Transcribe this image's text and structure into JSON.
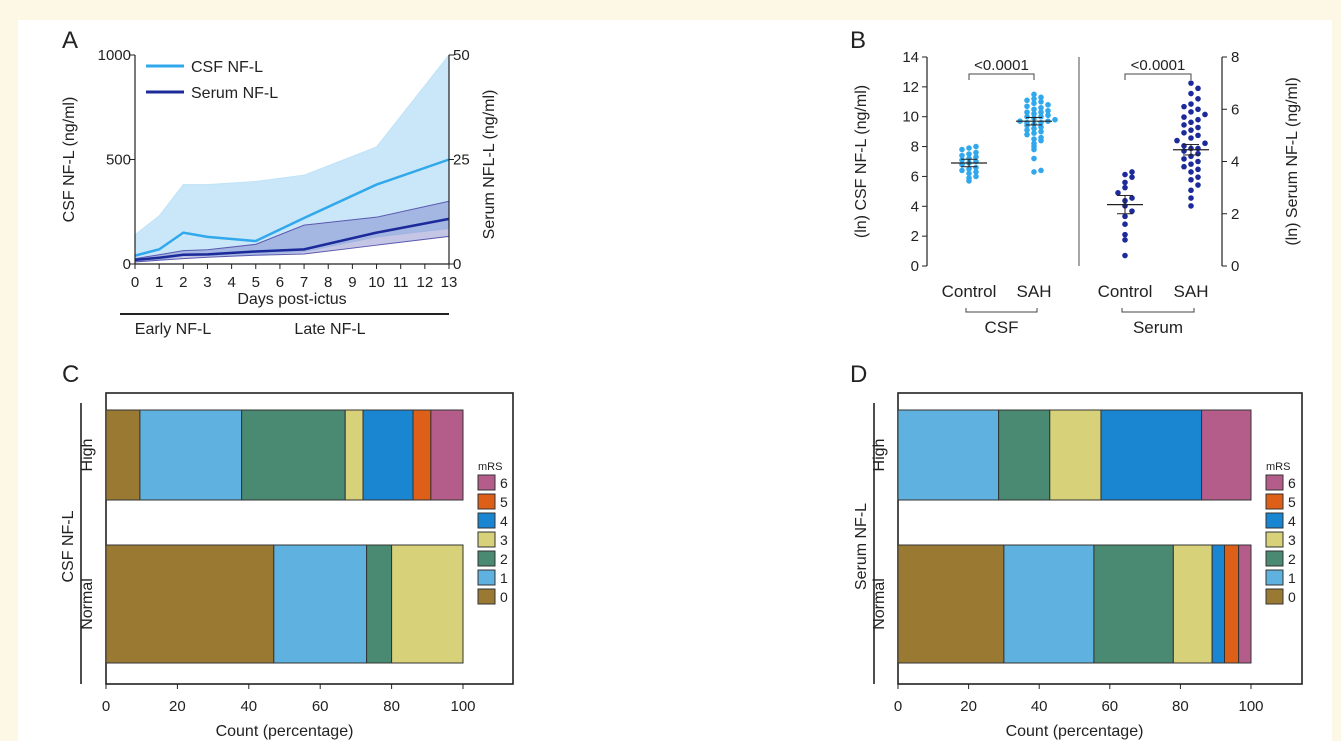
{
  "colors": {
    "page_bg": "#fdf8e6",
    "csf_light": "#31a8ec",
    "csf_band": "#bfe3f8",
    "serum_dark": "#1c2a9a",
    "serum_band": "#6f6fc0",
    "mrs_0": "#9a7a33",
    "mrs_1": "#5fb1df",
    "mrs_2": "#4a8a73",
    "mrs_3": "#d7d17a",
    "mrs_4": "#1a86d2",
    "mrs_5": "#de5f18",
    "mrs_6": "#b45c8a"
  },
  "panels": {
    "A": "A",
    "B": "B",
    "C": "C",
    "D": "D"
  },
  "chart_data": [
    {
      "id": "A",
      "type": "line",
      "xlabel": "Days post-ictus",
      "ylabel": "CSF NF-L (ng/ml)",
      "y2label": "Serum NFL-L (ng/ml)",
      "x": [
        0,
        1,
        2,
        3,
        4,
        5,
        6,
        7,
        8,
        9,
        10,
        11,
        12,
        13
      ],
      "xlim": [
        0,
        13
      ],
      "ylim": [
        0,
        1000
      ],
      "y2lim": [
        0,
        50
      ],
      "yticks": [
        0,
        500,
        1000
      ],
      "y2ticks": [
        0,
        25,
        50
      ],
      "legend_position": "top-left",
      "series": [
        {
          "name": "CSF NF-L",
          "axis": "left",
          "points": [
            [
              0,
              40
            ],
            [
              1,
              70
            ],
            [
              2,
              150
            ],
            [
              3,
              130
            ],
            [
              5,
              110
            ],
            [
              7,
              220
            ],
            [
              10,
              380
            ],
            [
              13,
              500
            ]
          ],
          "band_upper": [
            [
              0,
              140
            ],
            [
              1,
              230
            ],
            [
              2,
              380
            ],
            [
              3,
              380
            ],
            [
              5,
              395
            ],
            [
              7,
              425
            ],
            [
              10,
              560
            ],
            [
              13,
              1000
            ]
          ],
          "band_lower": [
            [
              0,
              10
            ],
            [
              1,
              20
            ],
            [
              2,
              40
            ],
            [
              3,
              40
            ],
            [
              5,
              45
            ],
            [
              7,
              60
            ],
            [
              10,
              130
            ],
            [
              13,
              170
            ]
          ]
        },
        {
          "name": "Serum NF-L",
          "axis": "right",
          "points": [
            [
              0,
              1
            ],
            [
              1,
              1.5
            ],
            [
              2,
              2.2
            ],
            [
              3,
              2.3
            ],
            [
              5,
              3
            ],
            [
              7,
              3.5
            ],
            [
              10,
              7.5
            ],
            [
              13,
              10.8
            ]
          ],
          "band_upper": [
            [
              0,
              1.3
            ],
            [
              1,
              2.2
            ],
            [
              2,
              3.2
            ],
            [
              3,
              3.4
            ],
            [
              5,
              4.7
            ],
            [
              7,
              9.3
            ],
            [
              10,
              11.2
            ],
            [
              13,
              15
            ]
          ],
          "band_lower": [
            [
              0,
              0.5
            ],
            [
              1,
              0.9
            ],
            [
              2,
              1.3
            ],
            [
              3,
              1.6
            ],
            [
              5,
              2.1
            ],
            [
              7,
              2.4
            ],
            [
              10,
              4.5
            ],
            [
              13,
              6.6
            ]
          ]
        }
      ],
      "phases": [
        {
          "label": "Early NF-L",
          "from": 0,
          "to": 3.5
        },
        {
          "label": "Late NF-L",
          "from": 3.5,
          "to": 13
        }
      ]
    },
    {
      "id": "B",
      "type": "scatter",
      "ylabel": "(ln) CSF NF-L (ng/ml)",
      "y2label": "(ln) Serum NF-L (ng/ml)",
      "ylim": [
        0,
        14
      ],
      "y2lim": [
        0,
        8
      ],
      "yticks": [
        0,
        2,
        4,
        6,
        8,
        10,
        12,
        14
      ],
      "y2ticks": [
        0,
        2,
        4,
        6,
        8
      ],
      "groups": [
        {
          "label": "Control",
          "sample": "CSF",
          "mean": 6.9,
          "sem": 0.25,
          "values": [
            5.7,
            5.9,
            6.0,
            6.2,
            6.3,
            6.4,
            6.5,
            6.6,
            6.8,
            6.9,
            7.0,
            7.1,
            7.2,
            7.3,
            7.4,
            7.5,
            7.6,
            7.8,
            7.9,
            8.0
          ]
        },
        {
          "label": "SAH",
          "sample": "CSF",
          "mean": 9.7,
          "sem": 0.25,
          "values": [
            6.3,
            6.4,
            7.2,
            7.8,
            8.0,
            8.2,
            8.4,
            8.5,
            8.6,
            8.8,
            8.9,
            9.0,
            9.1,
            9.2,
            9.3,
            9.4,
            9.5,
            9.6,
            9.6,
            9.7,
            9.7,
            9.8,
            9.9,
            10.0,
            10.0,
            10.1,
            10.2,
            10.3,
            10.3,
            10.4,
            10.5,
            10.6,
            10.7,
            10.8,
            10.9,
            11.0,
            11.1,
            11.2,
            11.3,
            11.5
          ]
        },
        {
          "label": "Control",
          "sample": "Serum",
          "mean": 2.35,
          "sem": 0.35,
          "values": [
            0.4,
            1.0,
            1.2,
            1.6,
            1.9,
            2.1,
            2.3,
            2.5,
            2.6,
            2.8,
            3.0,
            3.2,
            3.4,
            3.5,
            3.6
          ]
        },
        {
          "label": "SAH",
          "sample": "Serum",
          "mean": 4.45,
          "sem": 0.2,
          "values": [
            2.3,
            2.6,
            2.9,
            3.1,
            3.3,
            3.4,
            3.6,
            3.7,
            3.8,
            3.9,
            4.0,
            4.1,
            4.2,
            4.3,
            4.4,
            4.5,
            4.5,
            4.6,
            4.7,
            4.8,
            4.9,
            5.0,
            5.1,
            5.2,
            5.3,
            5.4,
            5.5,
            5.6,
            5.7,
            5.8,
            5.9,
            6.0,
            6.1,
            6.2,
            6.4,
            6.6,
            6.8,
            7.0
          ]
        }
      ],
      "comparisons": [
        {
          "sample": "CSF",
          "p": "<0.0001"
        },
        {
          "sample": "Serum",
          "p": "<0.0001"
        }
      ],
      "sample_labels": [
        "CSF",
        "Serum"
      ]
    },
    {
      "id": "C",
      "type": "bar",
      "orientation": "horizontal-stacked",
      "ylabel": "CSF NF-L",
      "xlabel": "Count (percentage)",
      "xlim": [
        0,
        100
      ],
      "xticks": [
        0,
        20,
        40,
        60,
        80,
        100
      ],
      "legend_title": "mRS",
      "legend_position": "right",
      "legend_labels": [
        "6",
        "5",
        "4",
        "3",
        "2",
        "1",
        "0"
      ],
      "categories": [
        "High",
        "Normal"
      ],
      "series": [
        {
          "name": "0",
          "values": [
            9.5,
            47
          ]
        },
        {
          "name": "1",
          "values": [
            28.5,
            26
          ]
        },
        {
          "name": "2",
          "values": [
            29,
            7
          ]
        },
        {
          "name": "3",
          "values": [
            5,
            20
          ]
        },
        {
          "name": "4",
          "values": [
            14,
            0
          ]
        },
        {
          "name": "5",
          "values": [
            5,
            0
          ]
        },
        {
          "name": "6",
          "values": [
            9,
            0
          ]
        }
      ]
    },
    {
      "id": "D",
      "type": "bar",
      "orientation": "horizontal-stacked",
      "ylabel": "Serum NF-L",
      "xlabel": "Count (percentage)",
      "xlim": [
        0,
        100
      ],
      "xticks": [
        0,
        20,
        40,
        60,
        80,
        100
      ],
      "legend_title": "mRS",
      "legend_position": "right",
      "legend_labels": [
        "6",
        "5",
        "4",
        "3",
        "2",
        "1",
        "0"
      ],
      "categories": [
        "High",
        "Normal"
      ],
      "series": [
        {
          "name": "0",
          "values": [
            0,
            30
          ]
        },
        {
          "name": "1",
          "values": [
            28.5,
            25.5
          ]
        },
        {
          "name": "2",
          "values": [
            14.5,
            22.5
          ]
        },
        {
          "name": "3",
          "values": [
            14.5,
            11
          ]
        },
        {
          "name": "4",
          "values": [
            28.5,
            3.5
          ]
        },
        {
          "name": "5",
          "values": [
            0,
            4
          ]
        },
        {
          "name": "6",
          "values": [
            14,
            3.5
          ]
        }
      ]
    }
  ]
}
